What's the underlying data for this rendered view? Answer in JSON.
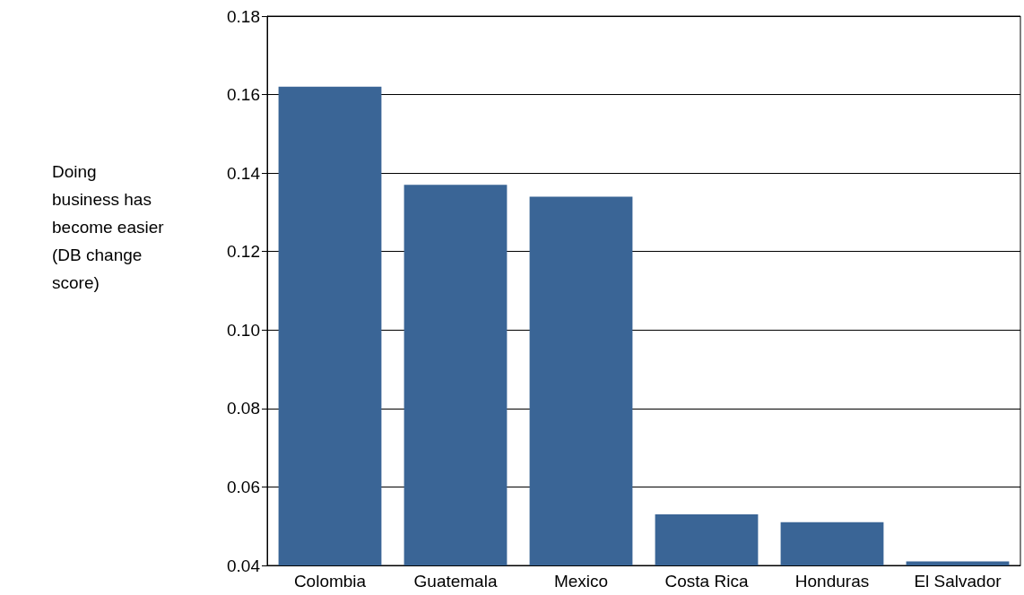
{
  "chart_data": {
    "type": "bar",
    "ylabel": "Doing business has become easier (DB change score)",
    "categories": [
      "Colombia",
      "Guatemala",
      "Mexico",
      "Costa Rica",
      "Honduras",
      "El Salvador"
    ],
    "values": [
      0.162,
      0.137,
      0.134,
      0.053,
      0.051,
      0.041
    ],
    "color": "#3a6596",
    "ylim": [
      0.04,
      0.18
    ],
    "yticks": [
      0.04,
      0.06,
      0.08,
      {
        "value": 0.1,
        "label": "0.10"
      },
      0.12,
      0.14,
      0.16,
      0.18
    ],
    "grid": "y"
  }
}
